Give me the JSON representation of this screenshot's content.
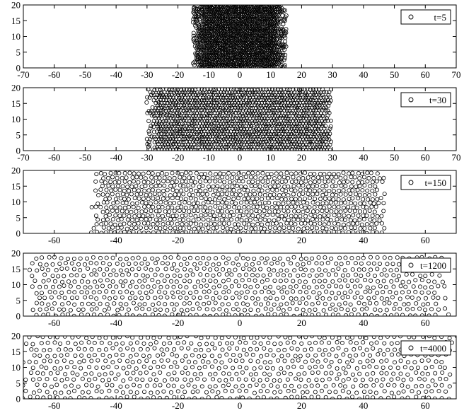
{
  "chart_data": [
    {
      "type": "scatter",
      "legend": "t=5",
      "legend_position": "top-right",
      "xlim": [
        -70,
        70
      ],
      "ylim": [
        0,
        20
      ],
      "x_ticks": [
        -70,
        -60,
        -50,
        -40,
        -30,
        -20,
        -10,
        0,
        10,
        20,
        30,
        40,
        50,
        60,
        70
      ],
      "y_ticks": [
        0,
        5,
        10,
        15,
        20
      ],
      "x_extent": [
        -15,
        15
      ],
      "density": 1.6,
      "marker": "open-circle",
      "grid": false
    },
    {
      "type": "scatter",
      "legend": "t=30",
      "legend_position": "top-right",
      "xlim": [
        -70,
        70
      ],
      "ylim": [
        0,
        20
      ],
      "x_ticks": [
        -70,
        -60,
        -50,
        -40,
        -30,
        -20,
        -10,
        0,
        10,
        20,
        30,
        40,
        50,
        60,
        70
      ],
      "y_ticks": [
        0,
        5,
        10,
        15,
        20
      ],
      "x_extent": [
        -30,
        30
      ],
      "density": 1.05,
      "marker": "open-circle",
      "grid": false
    },
    {
      "type": "scatter",
      "legend": "t=150",
      "legend_position": "top-right",
      "xlim": [
        -70,
        70
      ],
      "ylim": [
        0,
        20
      ],
      "x_ticks": [
        -60,
        -40,
        -20,
        0,
        20,
        40,
        60
      ],
      "y_ticks": [
        0,
        5,
        10,
        15,
        20
      ],
      "x_extent": [
        -48,
        47
      ],
      "density": 0.65,
      "marker": "open-circle",
      "grid": false
    },
    {
      "type": "scatter",
      "legend": "t=1200",
      "legend_position": "top-right",
      "xlim": [
        -70,
        70
      ],
      "ylim": [
        0,
        20
      ],
      "x_ticks": [
        -60,
        -40,
        -20,
        0,
        20,
        40,
        60
      ],
      "y_ticks": [
        0,
        5,
        10,
        15,
        20
      ],
      "x_extent": [
        -68,
        68
      ],
      "density": 0.48,
      "marker": "open-circle",
      "grid": false
    },
    {
      "type": "scatter",
      "legend": "t=4000",
      "legend_position": "top-right",
      "xlim": [
        -70,
        70
      ],
      "ylim": [
        0,
        20
      ],
      "x_ticks": [
        -60,
        -40,
        -20,
        0,
        20,
        40,
        60
      ],
      "y_ticks": [
        0,
        5,
        10,
        15,
        20
      ],
      "x_extent": [
        -70,
        70
      ],
      "density": 0.45,
      "marker": "open-circle",
      "grid": false
    }
  ]
}
